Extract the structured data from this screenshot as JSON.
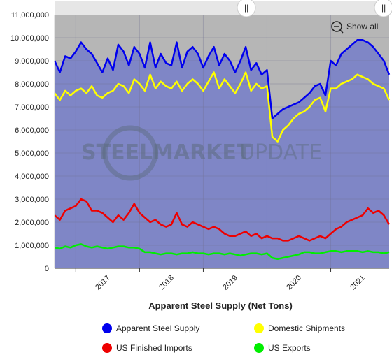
{
  "chart_data": {
    "type": "line",
    "xlabel": "Apparent Steel Supply (Net Tons)",
    "ylabel": "",
    "ylim": [
      0,
      11000000
    ],
    "y_ticks": [
      "0",
      "1,000,000",
      "2,000,000",
      "3,000,000",
      "4,000,000",
      "5,000,000",
      "6,000,000",
      "7,000,000",
      "8,000,000",
      "9,000,000",
      "10,000,000",
      "11,000,000"
    ],
    "x_ticks": [
      "2017",
      "2018",
      "2019",
      "2020",
      "2021"
    ],
    "grid": true,
    "legend_position": "bottom",
    "x_range": [
      "2016-09",
      "2021-12"
    ],
    "x": [
      "2016-09",
      "2016-10",
      "2016-11",
      "2016-12",
      "2017-01",
      "2017-02",
      "2017-03",
      "2017-04",
      "2017-05",
      "2017-06",
      "2017-07",
      "2017-08",
      "2017-09",
      "2017-10",
      "2017-11",
      "2017-12",
      "2018-01",
      "2018-02",
      "2018-03",
      "2018-04",
      "2018-05",
      "2018-06",
      "2018-07",
      "2018-08",
      "2018-09",
      "2018-10",
      "2018-11",
      "2018-12",
      "2019-01",
      "2019-02",
      "2019-03",
      "2019-04",
      "2019-05",
      "2019-06",
      "2019-07",
      "2019-08",
      "2019-09",
      "2019-10",
      "2019-11",
      "2019-12",
      "2020-01",
      "2020-02",
      "2020-03",
      "2020-04",
      "2020-05",
      "2020-06",
      "2020-07",
      "2020-08",
      "2020-09",
      "2020-10",
      "2020-11",
      "2020-12",
      "2021-01",
      "2021-02",
      "2021-03",
      "2021-04",
      "2021-05",
      "2021-06",
      "2021-07",
      "2021-08",
      "2021-09",
      "2021-10",
      "2021-11",
      "2021-12"
    ],
    "series": [
      {
        "name": "Apparent Steel Supply",
        "color": "#0000ee",
        "values": [
          9000000,
          8500000,
          9200000,
          9100000,
          9400000,
          9800000,
          9500000,
          9300000,
          8900000,
          8500000,
          9100000,
          8600000,
          9700000,
          9400000,
          8800000,
          9600000,
          9300000,
          8700000,
          9800000,
          8700000,
          9300000,
          8900000,
          8800000,
          9800000,
          8700000,
          9400000,
          9600000,
          9300000,
          8700000,
          9200000,
          9600000,
          8800000,
          9300000,
          9000000,
          8500000,
          9000000,
          9600000,
          8600000,
          8900000,
          8400000,
          8600000,
          6500000,
          6700000,
          6900000,
          7000000,
          7100000,
          7200000,
          7400000,
          7600000,
          7900000,
          8000000,
          7500000,
          9000000,
          8800000,
          9300000,
          9500000,
          9700000,
          9900000,
          9900000,
          9800000,
          9600000,
          9300000,
          9000000,
          8400000
        ]
      },
      {
        "name": "Domestic Shipments",
        "color": "#ffff00",
        "values": [
          7600000,
          7300000,
          7700000,
          7500000,
          7700000,
          7800000,
          7600000,
          7900000,
          7500000,
          7400000,
          7600000,
          7700000,
          8000000,
          7900000,
          7600000,
          8200000,
          8000000,
          7700000,
          8400000,
          7800000,
          8100000,
          7900000,
          7800000,
          8100000,
          7700000,
          8000000,
          8200000,
          8000000,
          7700000,
          8100000,
          8500000,
          7800000,
          8200000,
          7900000,
          7600000,
          8000000,
          8500000,
          7700000,
          8000000,
          7800000,
          7900000,
          5700000,
          5500000,
          6000000,
          6200000,
          6500000,
          6700000,
          6800000,
          7000000,
          7300000,
          7400000,
          6800000,
          7800000,
          7800000,
          8000000,
          8100000,
          8200000,
          8400000,
          8300000,
          8200000,
          8000000,
          7900000,
          7800000,
          7300000
        ]
      },
      {
        "name": "US Finished Imports",
        "color": "#ee0000",
        "values": [
          2300000,
          2100000,
          2500000,
          2600000,
          2700000,
          3000000,
          2900000,
          2500000,
          2500000,
          2400000,
          2200000,
          2000000,
          2300000,
          2100000,
          2400000,
          2800000,
          2400000,
          2200000,
          2000000,
          2100000,
          1900000,
          1800000,
          1900000,
          2400000,
          1900000,
          1800000,
          2000000,
          1900000,
          1800000,
          1700000,
          1800000,
          1700000,
          1500000,
          1400000,
          1400000,
          1500000,
          1600000,
          1400000,
          1500000,
          1300000,
          1400000,
          1300000,
          1300000,
          1200000,
          1200000,
          1300000,
          1400000,
          1300000,
          1200000,
          1300000,
          1400000,
          1300000,
          1500000,
          1700000,
          1800000,
          2000000,
          2100000,
          2200000,
          2300000,
          2600000,
          2400000,
          2500000,
          2300000,
          1900000
        ]
      },
      {
        "name": "US Exports",
        "color": "#00ee00",
        "values": [
          900000,
          850000,
          950000,
          900000,
          1000000,
          1050000,
          950000,
          900000,
          950000,
          900000,
          850000,
          900000,
          950000,
          950000,
          900000,
          900000,
          850000,
          700000,
          700000,
          650000,
          600000,
          650000,
          650000,
          600000,
          650000,
          650000,
          700000,
          650000,
          650000,
          600000,
          650000,
          650000,
          600000,
          650000,
          600000,
          550000,
          600000,
          650000,
          650000,
          600000,
          650000,
          450000,
          400000,
          450000,
          500000,
          550000,
          600000,
          700000,
          700000,
          650000,
          650000,
          700000,
          750000,
          750000,
          700000,
          750000,
          750000,
          750000,
          700000,
          750000,
          700000,
          700000,
          650000,
          700000
        ]
      }
    ]
  },
  "watermark": {
    "word1": "STEEL",
    "word2": "MARKET",
    "word3": "UPDATE"
  },
  "controls": {
    "show_all_label": "Show all"
  },
  "colors": {
    "plot_fill": "#7f86c6",
    "band_fill": "#b6b6b6"
  }
}
